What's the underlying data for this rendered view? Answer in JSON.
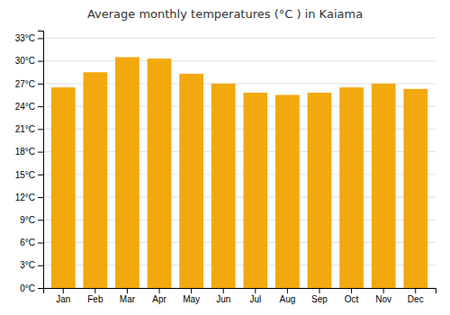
{
  "chart_data": {
    "type": "bar",
    "title": "Average monthly temperatures (°C ) in Kaiama",
    "categories": [
      "Jan",
      "Feb",
      "Mar",
      "Apr",
      "May",
      "Jun",
      "Jul",
      "Aug",
      "Sep",
      "Oct",
      "Nov",
      "Dec"
    ],
    "values": [
      26.5,
      28.5,
      30.5,
      30.3,
      28.3,
      27.0,
      25.8,
      25.5,
      25.8,
      26.5,
      27.0,
      26.3
    ],
    "color": "#f3a80e",
    "ylim": [
      0,
      34
    ],
    "yticks": [
      {
        "value": 0,
        "label": "0°C"
      },
      {
        "value": 3,
        "label": "3°C"
      },
      {
        "value": 6,
        "label": "6°C"
      },
      {
        "value": 9,
        "label": "9°C"
      },
      {
        "value": 12,
        "label": "12°C"
      },
      {
        "value": 15,
        "label": "15°C"
      },
      {
        "value": 18,
        "label": "18°C"
      },
      {
        "value": 21,
        "label": "21°C"
      },
      {
        "value": 24,
        "label": "24°C"
      },
      {
        "value": 27,
        "label": "27°C"
      },
      {
        "value": 30,
        "label": "30°C"
      },
      {
        "value": 33,
        "label": "33°C"
      }
    ],
    "grid": true
  }
}
